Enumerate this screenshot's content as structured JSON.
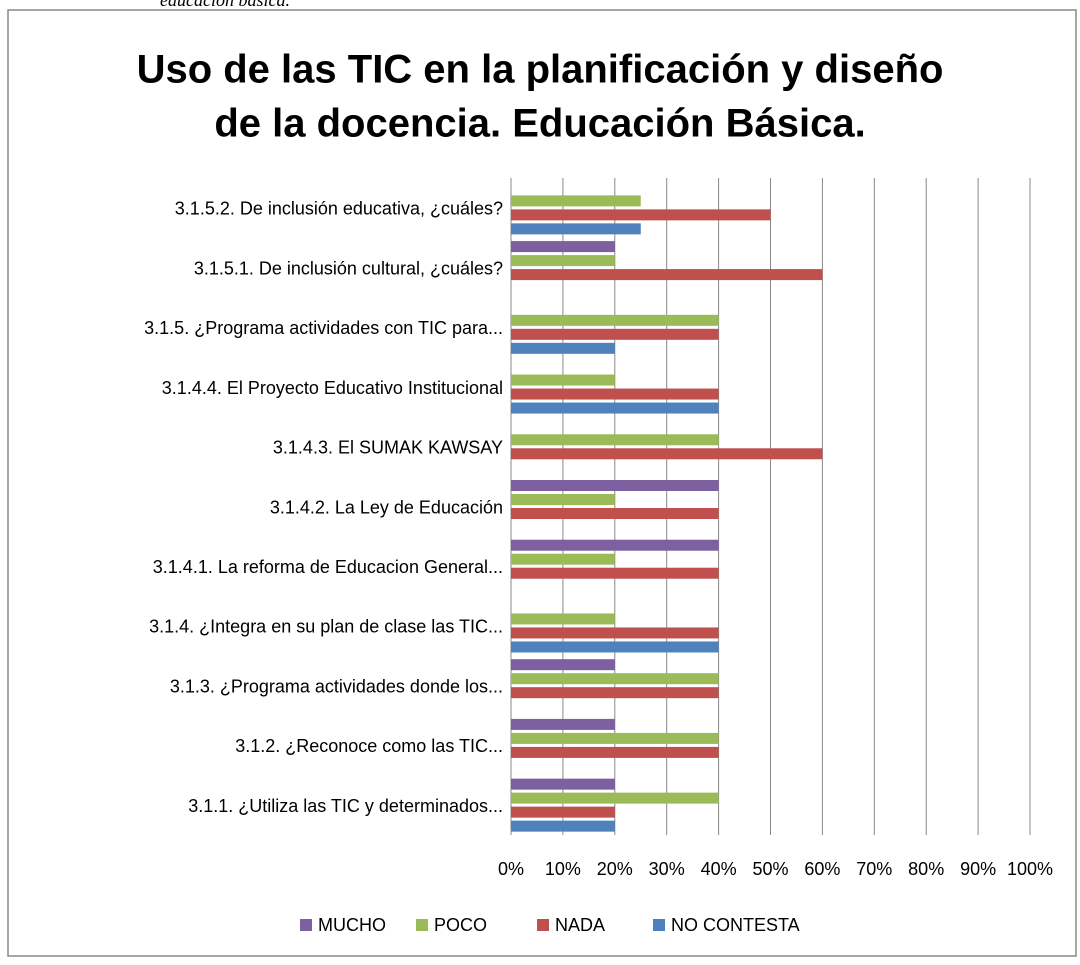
{
  "clipped_caption": "educación básica.",
  "chart_data": {
    "type": "bar",
    "orientation": "horizontal",
    "title": [
      "Uso de las TIC en la planificación y diseño",
      "de la docencia.  Educación Básica."
    ],
    "categories": [
      "3.1.5.2. De inclusión educativa, ¿cuáles?",
      "3.1.5.1. De inclusión cultural, ¿cuáles?",
      "3.1.5. ¿Programa actividades con TIC para...",
      "3.1.4.4. El Proyecto Educativo Institucional",
      "3.1.4.3. El SUMAK KAWSAY",
      "3.1.4.2. La Ley de Educación",
      "3.1.4.1. La reforma de Educacion General...",
      "3.1.4. ¿Integra en su plan de clase las TIC...",
      "3.1.3. ¿Programa actividades donde los...",
      "3.1.2. ¿Reconoce como las TIC...",
      "3.1.1. ¿Utiliza las TIC y determinados..."
    ],
    "series": [
      {
        "name": "MUCHO",
        "color": "#7d60a0",
        "values": [
          0,
          20,
          0,
          0,
          0,
          40,
          40,
          0,
          20,
          20,
          20
        ]
      },
      {
        "name": "POCO",
        "color": "#9bbb59",
        "values": [
          25,
          20,
          40,
          20,
          40,
          20,
          20,
          20,
          40,
          40,
          40
        ]
      },
      {
        "name": "NADA",
        "color": "#c0504d",
        "values": [
          50,
          60,
          40,
          40,
          60,
          40,
          40,
          40,
          40,
          40,
          20
        ]
      },
      {
        "name": "NO CONTESTA",
        "color": "#4f81bd",
        "values": [
          25,
          0,
          20,
          40,
          0,
          0,
          0,
          40,
          0,
          0,
          20
        ]
      }
    ],
    "xlim": [
      0,
      100
    ],
    "xticks": [
      {
        "value": 0,
        "label": "0%"
      },
      {
        "value": 10,
        "label": "10%"
      },
      {
        "value": 20,
        "label": "20%"
      },
      {
        "value": 30,
        "label": "30%"
      },
      {
        "value": 40,
        "label": "40%"
      },
      {
        "value": 50,
        "label": "50%"
      },
      {
        "value": 60,
        "label": "60%"
      },
      {
        "value": 70,
        "label": "70%"
      },
      {
        "value": 80,
        "label": "80%"
      },
      {
        "value": 90,
        "label": "90%"
      },
      {
        "value": 100,
        "label": "100%"
      }
    ],
    "grid": true,
    "legend": "bottom"
  }
}
